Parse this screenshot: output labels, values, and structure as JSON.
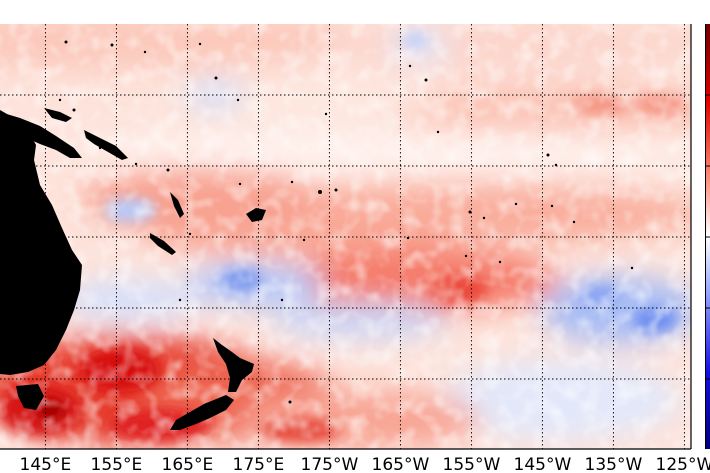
{
  "map": {
    "projection": "equirectangular",
    "region": "Southwest Pacific Ocean",
    "lon_range": [
      141,
      237
    ],
    "lat_range": [
      -50,
      10
    ],
    "graticule_style": "dotted",
    "graticule_lats": [
      0,
      -10,
      -20,
      -30,
      -40,
      -50
    ],
    "graticule_lons": [
      145,
      155,
      165,
      175,
      185,
      195,
      205,
      215,
      225,
      235
    ],
    "colormap": "seismic (blue-white-red diverging)",
    "colors": {
      "land": "#000000",
      "deep_red": "#d50000",
      "red": "#f25a4a",
      "light_red": "#fbc2b4",
      "white": "#ffffff",
      "light_blue": "#c8d6fb",
      "blue": "#5a7ee8",
      "colorbar_top": "#6a0000",
      "colorbar_bottom": "#00007a"
    },
    "longitude_labels": [
      {
        "lon": 145,
        "text": "145°E"
      },
      {
        "lon": 155,
        "text": "155°E"
      },
      {
        "lon": 165,
        "text": "165°E"
      },
      {
        "lon": 175,
        "text": "175°E"
      },
      {
        "lon": 185,
        "text": "175°W"
      },
      {
        "lon": 195,
        "text": "165°W"
      },
      {
        "lon": 205,
        "text": "155°W"
      },
      {
        "lon": 215,
        "text": "145°W"
      },
      {
        "lon": 225,
        "text": "135°W"
      },
      {
        "lon": 235,
        "text": "125°W"
      }
    ]
  }
}
